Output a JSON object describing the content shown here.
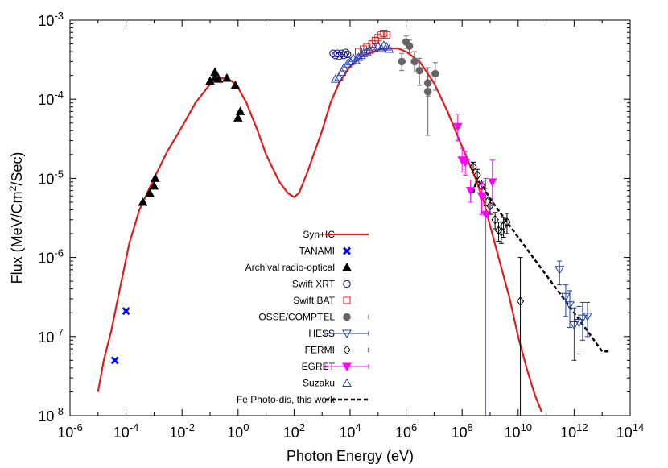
{
  "chart_data": {
    "type": "scatter",
    "title": "",
    "xlabel": "Photon Energy (eV)",
    "ylabel": {
      "base": "Flux (MeV/Cm",
      "sup": "2",
      "rest": "/Sec)"
    },
    "x_scale": "log",
    "y_scale": "log",
    "xlim": [
      1e-06,
      100000000000000.0
    ],
    "ylim": [
      1e-08,
      0.001
    ],
    "x_ticks": [
      {
        "value": 1e-06,
        "base": "10",
        "exp": "-6"
      },
      {
        "value": 0.0001,
        "base": "10",
        "exp": "-4"
      },
      {
        "value": 0.01,
        "base": "10",
        "exp": "-2"
      },
      {
        "value": 1.0,
        "base": "10",
        "exp": "0"
      },
      {
        "value": 100.0,
        "base": "10",
        "exp": "2"
      },
      {
        "value": 10000.0,
        "base": "10",
        "exp": "4"
      },
      {
        "value": 1000000.0,
        "base": "10",
        "exp": "6"
      },
      {
        "value": 100000000.0,
        "base": "10",
        "exp": "8"
      },
      {
        "value": 10000000000.0,
        "base": "10",
        "exp": "10"
      },
      {
        "value": 1000000000000.0,
        "base": "10",
        "exp": "12"
      },
      {
        "value": 100000000000000.0,
        "base": "10",
        "exp": "14"
      }
    ],
    "y_ticks": [
      {
        "value": 1e-08,
        "base": "10",
        "exp": "-8"
      },
      {
        "value": 1e-07,
        "base": "10",
        "exp": "-7"
      },
      {
        "value": 1e-06,
        "base": "10",
        "exp": "-6"
      },
      {
        "value": 1e-05,
        "base": "10",
        "exp": "-5"
      },
      {
        "value": 0.0001,
        "base": "10",
        "exp": "-4"
      },
      {
        "value": 0.001,
        "base": "10",
        "exp": "-3"
      }
    ],
    "legend_position": "center",
    "series": [
      {
        "name": "Syn+IC",
        "kind": "line",
        "color": "#e41a1c",
        "style": "solid",
        "points": [
          [
            1e-05,
            2e-08
          ],
          [
            1.6e-05,
            5e-08
          ],
          [
            3e-05,
            1.2e-07
          ],
          [
            6e-05,
            4e-07
          ],
          [
            0.00013,
            1.5e-06
          ],
          [
            0.0003,
            4e-06
          ],
          [
            0.001,
            1e-05
          ],
          [
            0.003,
            2.2e-05
          ],
          [
            0.01,
            4.5e-05
          ],
          [
            0.03,
            9e-05
          ],
          [
            0.1,
            0.000155
          ],
          [
            0.2,
            0.00018
          ],
          [
            0.3,
            0.000185
          ],
          [
            0.6,
            0.00017
          ],
          [
            1,
            0.00014
          ],
          [
            2,
            9e-05
          ],
          [
            5,
            4e-05
          ],
          [
            10,
            2e-05
          ],
          [
            30,
            9e-06
          ],
          [
            60,
            6.5e-06
          ],
          [
            100,
            5.8e-06
          ],
          [
            150,
            6.5e-06
          ],
          [
            300,
            1.2e-05
          ],
          [
            1000,
            4e-05
          ],
          [
            2000,
            9e-05
          ],
          [
            4000,
            0.00016
          ],
          [
            10000.0,
            0.00026
          ],
          [
            30000.0,
            0.00036
          ],
          [
            100000.0,
            0.00042
          ],
          [
            200000.0,
            0.00044
          ],
          [
            500000.0,
            0.00044
          ],
          [
            1000000.0,
            0.0004
          ],
          [
            3000000.0,
            0.0003
          ],
          [
            10000000.0,
            0.00016
          ],
          [
            30000000.0,
            7e-05
          ],
          [
            100000000.0,
            2.5e-05
          ],
          [
            300000000.0,
            1e-05
          ],
          [
            600000000.0,
            5e-06
          ],
          [
            1000000000.0,
            2.5e-06
          ],
          [
            2000000000.0,
            1e-06
          ],
          [
            5000000000.0,
            3e-07
          ],
          [
            10000000000.0,
            1e-07
          ],
          [
            20000000000.0,
            4e-08
          ],
          [
            40000000000.0,
            1.8e-08
          ],
          [
            70000000000.0,
            1.1e-08
          ]
        ]
      },
      {
        "name": "TANAMI",
        "kind": "points",
        "marker": "cross",
        "color": "#0000ff",
        "points": [
          [
            4e-05,
            5e-08
          ],
          [
            0.0001,
            2.1e-07
          ]
        ]
      },
      {
        "name": "Archival radio-optical",
        "kind": "points",
        "marker": "triangle-filled",
        "color": "#000000",
        "points": [
          [
            0.0004,
            5e-06
          ],
          [
            0.0007,
            6.5e-06
          ],
          [
            0.001,
            8e-06
          ],
          [
            0.0011,
            1e-05
          ],
          [
            0.1,
            0.00017
          ],
          [
            0.15,
            0.00022
          ],
          [
            0.15,
            0.00019
          ],
          [
            0.2,
            0.00018
          ],
          [
            0.4,
            0.000185
          ],
          [
            0.8,
            0.00015
          ],
          [
            1,
            5.8e-05
          ],
          [
            1.2,
            7e-05
          ]
        ]
      },
      {
        "name": "Swift XRT",
        "kind": "points",
        "marker": "circle-open",
        "color": "#00008b",
        "points": [
          [
            2500,
            0.00038
          ],
          [
            3000,
            0.00036
          ],
          [
            3500,
            0.00038
          ],
          [
            4000,
            0.00035
          ],
          [
            5000,
            0.00038
          ],
          [
            6000,
            0.00036
          ],
          [
            7000,
            0.00039
          ],
          [
            8000,
            0.00037
          ]
        ]
      },
      {
        "name": "Swift BAT",
        "kind": "points",
        "marker": "square-open",
        "color": "#e41a1c",
        "points": [
          [
            20000.0,
            0.0004
          ],
          [
            30000.0,
            0.00043
          ],
          [
            40000.0,
            0.00046
          ],
          [
            60000.0,
            0.0005
          ],
          [
            80000.0,
            0.00055
          ],
          [
            100000.0,
            0.0006
          ],
          [
            130000.0,
            0.00065
          ],
          [
            160000.0,
            0.00068
          ],
          [
            200000.0,
            0.00065
          ]
        ]
      },
      {
        "name": "OSSE/COMPTEL",
        "kind": "points",
        "marker": "circle-filled",
        "color": "#666666",
        "points": [
          [
            700000.0,
            0.0003
          ],
          [
            1000000.0,
            0.00053
          ],
          [
            1300000.0,
            0.00047
          ],
          [
            2000000.0,
            0.0003
          ],
          [
            3000000.0,
            0.00023
          ],
          [
            6000000.0,
            0.00016
          ],
          [
            6000000.0,
            0.000125
          ],
          [
            11000000.0,
            0.00021
          ]
        ],
        "yerr": [
          [
            0.00023,
            0.00038
          ],
          [
            0.00044,
            0.00063
          ],
          [
            0.00039,
            0.00056
          ],
          [
            0.00022,
            0.0004
          ],
          [
            0.00015,
            0.00033
          ],
          [
            0.00011,
            0.00022
          ],
          [
            3.5e-05,
            0.00025
          ],
          [
            0.00013,
            0.00029
          ]
        ]
      },
      {
        "name": "HESS",
        "kind": "points",
        "marker": "triangle-down-open",
        "color": "#1f3fa0",
        "points": [
          [
            300000000000.0,
            7e-07
          ],
          [
            500000000000.0,
            3.2e-07
          ],
          [
            700000000000.0,
            2.5e-07
          ],
          [
            1000000000000.0,
            1.4e-07
          ],
          [
            1500000000000.0,
            1.5e-07
          ],
          [
            2000000000000.0,
            1.7e-07
          ],
          [
            3000000000000.0,
            1.8e-07
          ]
        ],
        "yerr": [
          [
            4.5e-07,
            9e-07
          ],
          [
            1.8e-07,
            4.5e-07
          ],
          [
            1.3e-07,
            3.8e-07
          ],
          [
            5e-08,
            2.3e-07
          ],
          [
            6e-08,
            2.4e-07
          ],
          [
            9e-08,
            2.7e-07
          ],
          [
            1e-07,
            2.7e-07
          ]
        ]
      },
      {
        "name": "FERMI",
        "kind": "points",
        "marker": "diamond-open",
        "color": "#000000",
        "points": [
          [
            250000000.0,
            1.4e-05
          ],
          [
            350000000.0,
            1.1e-05
          ],
          [
            500000000.0,
            8e-06
          ],
          [
            700000000.0,
            6e-06
          ],
          [
            1000000000.0,
            4.5e-06
          ],
          [
            1500000000.0,
            3e-06
          ],
          [
            2000000000.0,
            2.2e-06
          ],
          [
            2500000000.0,
            2.1e-06
          ],
          [
            3000000000.0,
            2.5e-06
          ],
          [
            4000000000.0,
            2.8e-06
          ],
          [
            12000000000.0,
            2.8e-07
          ]
        ],
        "yerr": [
          [
            1.2e-05,
            1.6e-05
          ],
          [
            9e-06,
            1.3e-05
          ],
          [
            6.5e-06,
            9.5e-06
          ],
          [
            4.5e-06,
            7.5e-06
          ],
          [
            3.5e-06,
            5.5e-06
          ],
          [
            2.3e-06,
            3.7e-06
          ],
          [
            1.6e-06,
            2.8e-06
          ],
          [
            1.5e-06,
            2.8e-06
          ],
          [
            1.8e-06,
            3.2e-06
          ],
          [
            2e-06,
            3.6e-06
          ],
          [
            1e-08,
            1e-06
          ]
        ]
      },
      {
        "name": "EGRET",
        "kind": "points",
        "marker": "triangle-down-filled",
        "color": "#ff00ff",
        "points": [
          [
            70000000.0,
            4.5e-05
          ],
          [
            100000000.0,
            1.7e-05
          ],
          [
            130000000.0,
            1.6e-05
          ],
          [
            200000000.0,
            7e-06
          ],
          [
            500000000.0,
            6e-06
          ],
          [
            700000000.0,
            3.5e-06
          ],
          [
            1200000000.0,
            9e-06
          ]
        ],
        "yerr": [
          [
            3e-05,
            6.5e-05
          ],
          [
            1.2e-05,
            2.4e-05
          ],
          [
            1.1e-05,
            2.2e-05
          ],
          [
            5e-06,
            9.5e-06
          ],
          [
            3.5e-06,
            9e-06
          ],
          [
            1e-08,
            1e-05
          ],
          [
            4.5e-06,
            1.7e-05
          ]
        ]
      },
      {
        "name": "Suzaku",
        "kind": "points",
        "marker": "triangle-open",
        "color": "#1f3fc0",
        "points": [
          [
            3000,
            0.00018
          ],
          [
            4000,
            0.00019
          ],
          [
            5000,
            0.00022
          ],
          [
            6000,
            0.00025
          ],
          [
            8000,
            0.00028
          ],
          [
            10000.0,
            0.0003
          ],
          [
            13000.0,
            0.00033
          ],
          [
            16000.0,
            0.00031
          ],
          [
            20000.0,
            0.00034
          ],
          [
            25000.0,
            0.00036
          ],
          [
            30000.0,
            0.00038
          ],
          [
            40000.0,
            0.0004
          ],
          [
            50000.0,
            0.00042
          ],
          [
            70000.0,
            0.00045
          ],
          [
            100000.0,
            0.00047
          ],
          [
            130000.0,
            0.00044
          ],
          [
            160000.0,
            0.00048
          ],
          [
            200000.0,
            0.00046
          ],
          [
            250000.0,
            0.00043
          ]
        ]
      },
      {
        "name": "Fe Photo-dis, this work",
        "kind": "line",
        "color": "#000000",
        "style": "dashed",
        "points": [
          [
            250000000.0,
            6.5e-06
          ],
          [
            300000000.0,
            8.5e-06
          ],
          [
            400000000.0,
            9e-06
          ],
          [
            600000000.0,
            7.5e-06
          ],
          [
            1000000000.0,
            5.5e-06
          ],
          [
            10000000000.0,
            1.8e-06
          ],
          [
            100000000000.0,
            6e-07
          ],
          [
            1000000000000.0,
            2e-07
          ],
          [
            10000000000000.0,
            6.5e-08
          ],
          [
            20000000000000.0,
            6.5e-08
          ]
        ]
      }
    ]
  }
}
